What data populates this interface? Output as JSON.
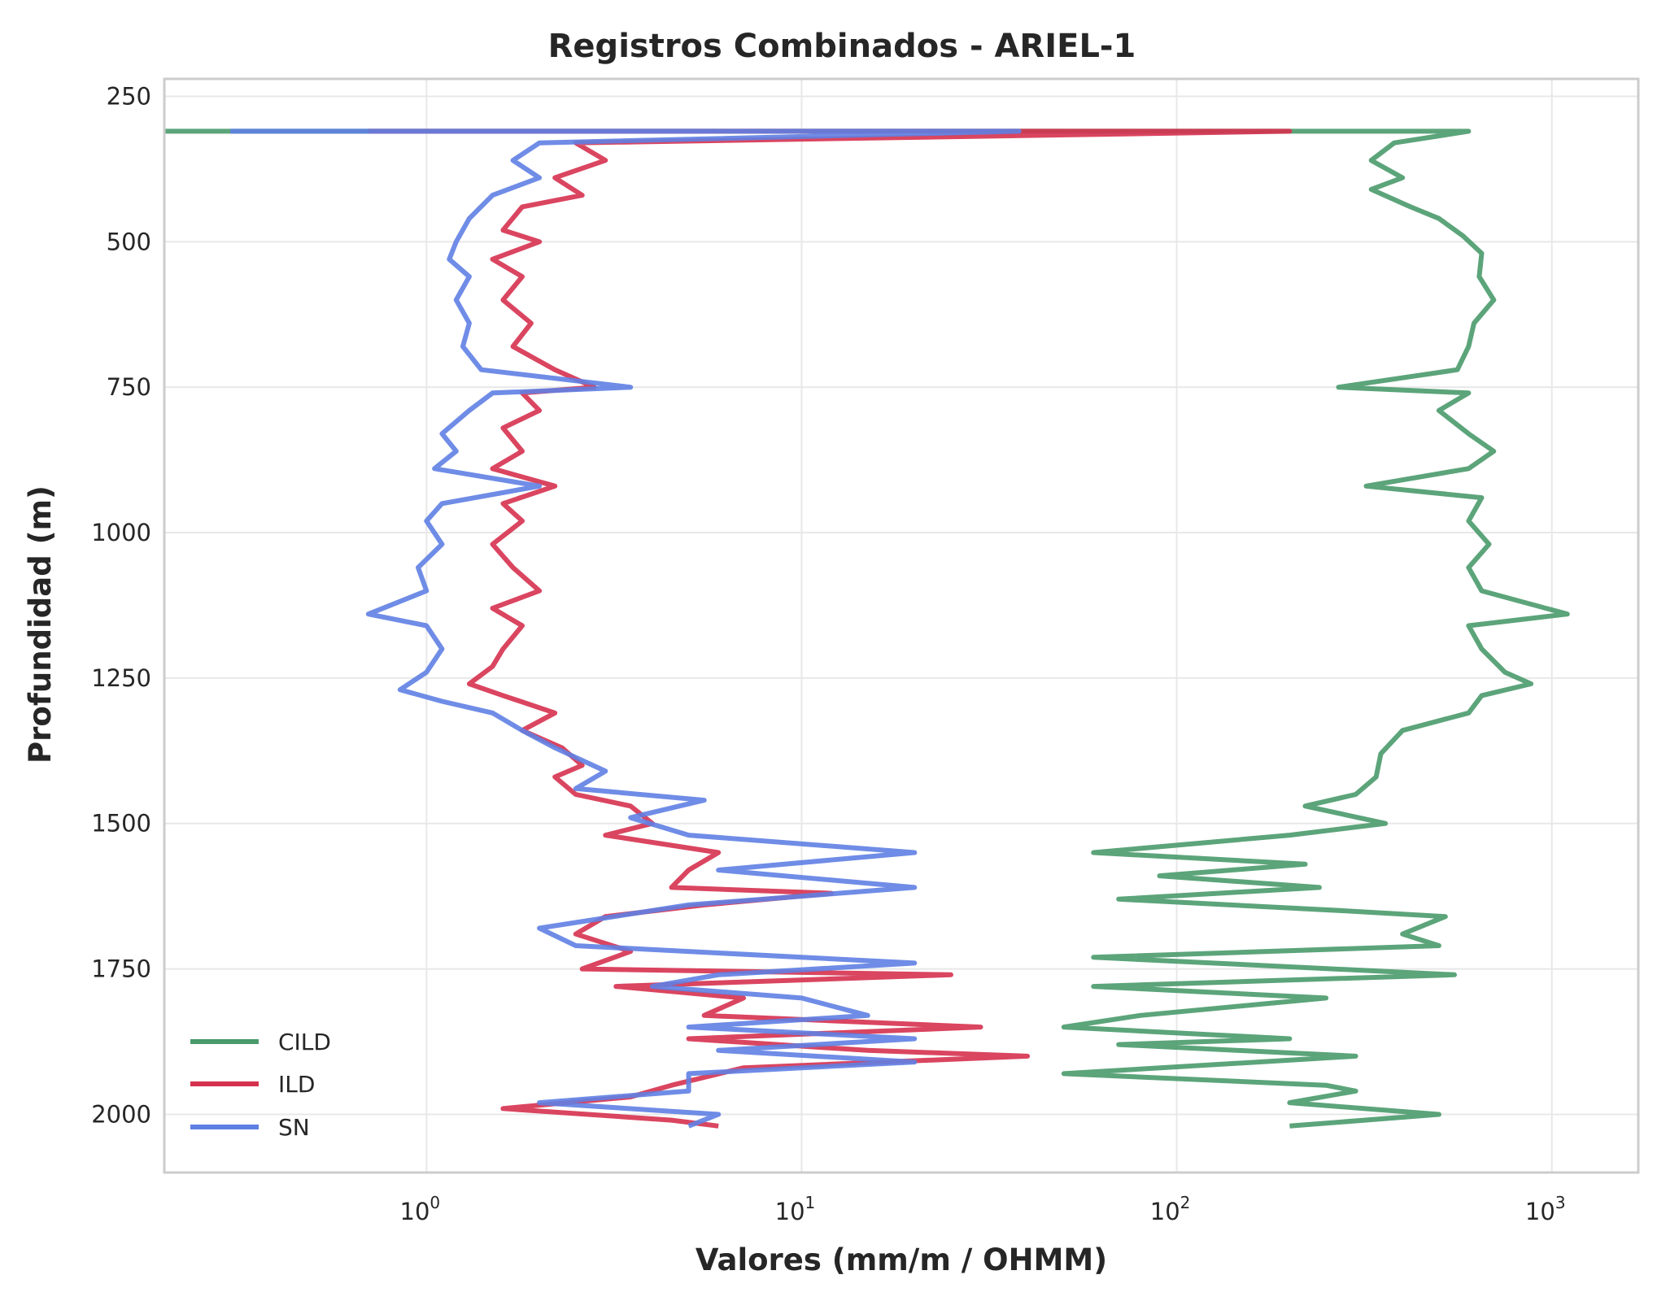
{
  "chart_data": {
    "type": "line",
    "title": "Registros Combinados - ARIEL-1",
    "xlabel": "Valores (mm/m / OHMM)",
    "ylabel": "Profundidad (m)",
    "x_scale": "log",
    "xlim": [
      0.2,
      1700
    ],
    "ylim": [
      2100,
      220
    ],
    "y_inverted": true,
    "grid": true,
    "legend_position": "lower-left",
    "x_ticks": [
      {
        "value": 1,
        "base": "10",
        "exp": "0"
      },
      {
        "value": 10,
        "base": "10",
        "exp": "1"
      },
      {
        "value": 100,
        "base": "10",
        "exp": "2"
      },
      {
        "value": 1000,
        "base": "10",
        "exp": "3"
      }
    ],
    "y_ticks": [
      250,
      500,
      750,
      1000,
      1250,
      1500,
      1750,
      2000
    ],
    "series": [
      {
        "name": "CILD",
        "color": "#4a9a6c",
        "points": [
          [
            0.2,
            310
          ],
          [
            600,
            310
          ],
          [
            380,
            330
          ],
          [
            330,
            360
          ],
          [
            400,
            390
          ],
          [
            330,
            410
          ],
          [
            420,
            440
          ],
          [
            500,
            460
          ],
          [
            580,
            490
          ],
          [
            650,
            520
          ],
          [
            640,
            560
          ],
          [
            700,
            600
          ],
          [
            620,
            640
          ],
          [
            600,
            680
          ],
          [
            560,
            720
          ],
          [
            270,
            750
          ],
          [
            600,
            760
          ],
          [
            500,
            790
          ],
          [
            600,
            830
          ],
          [
            700,
            860
          ],
          [
            600,
            890
          ],
          [
            320,
            920
          ],
          [
            650,
            940
          ],
          [
            600,
            980
          ],
          [
            680,
            1020
          ],
          [
            600,
            1060
          ],
          [
            650,
            1100
          ],
          [
            1100,
            1140
          ],
          [
            600,
            1160
          ],
          [
            650,
            1200
          ],
          [
            750,
            1240
          ],
          [
            880,
            1260
          ],
          [
            650,
            1280
          ],
          [
            600,
            1310
          ],
          [
            400,
            1340
          ],
          [
            350,
            1380
          ],
          [
            340,
            1420
          ],
          [
            300,
            1450
          ],
          [
            220,
            1470
          ],
          [
            360,
            1500
          ],
          [
            200,
            1520
          ],
          [
            60,
            1550
          ],
          [
            220,
            1570
          ],
          [
            90,
            1590
          ],
          [
            240,
            1610
          ],
          [
            70,
            1630
          ],
          [
            280,
            1650
          ],
          [
            520,
            1660
          ],
          [
            400,
            1690
          ],
          [
            500,
            1710
          ],
          [
            60,
            1730
          ],
          [
            550,
            1760
          ],
          [
            60,
            1780
          ],
          [
            250,
            1800
          ],
          [
            80,
            1830
          ],
          [
            50,
            1850
          ],
          [
            200,
            1870
          ],
          [
            70,
            1880
          ],
          [
            300,
            1900
          ],
          [
            50,
            1930
          ],
          [
            250,
            1950
          ],
          [
            300,
            1960
          ],
          [
            200,
            1980
          ],
          [
            500,
            2000
          ],
          [
            200,
            2020
          ]
        ]
      },
      {
        "name": "ILD",
        "color": "#d6314f",
        "points": [
          [
            0.7,
            310
          ],
          [
            200,
            310
          ],
          [
            2.5,
            330
          ],
          [
            3.0,
            360
          ],
          [
            2.2,
            390
          ],
          [
            2.6,
            420
          ],
          [
            1.8,
            440
          ],
          [
            1.6,
            480
          ],
          [
            2.0,
            500
          ],
          [
            1.5,
            530
          ],
          [
            1.8,
            560
          ],
          [
            1.6,
            600
          ],
          [
            1.9,
            640
          ],
          [
            1.7,
            680
          ],
          [
            2.2,
            720
          ],
          [
            2.8,
            750
          ],
          [
            1.8,
            760
          ],
          [
            2.0,
            790
          ],
          [
            1.6,
            820
          ],
          [
            1.8,
            860
          ],
          [
            1.5,
            890
          ],
          [
            2.2,
            920
          ],
          [
            1.6,
            950
          ],
          [
            1.8,
            980
          ],
          [
            1.5,
            1020
          ],
          [
            1.7,
            1060
          ],
          [
            2.0,
            1100
          ],
          [
            1.5,
            1130
          ],
          [
            1.8,
            1160
          ],
          [
            1.6,
            1200
          ],
          [
            1.5,
            1230
          ],
          [
            1.3,
            1260
          ],
          [
            1.6,
            1280
          ],
          [
            2.2,
            1310
          ],
          [
            1.8,
            1340
          ],
          [
            2.3,
            1370
          ],
          [
            2.6,
            1400
          ],
          [
            2.2,
            1420
          ],
          [
            2.5,
            1450
          ],
          [
            3.5,
            1470
          ],
          [
            4.0,
            1500
          ],
          [
            3.0,
            1520
          ],
          [
            6.0,
            1550
          ],
          [
            5.0,
            1580
          ],
          [
            4.5,
            1610
          ],
          [
            12.0,
            1620
          ],
          [
            5.5,
            1640
          ],
          [
            3.0,
            1660
          ],
          [
            2.5,
            1690
          ],
          [
            3.5,
            1720
          ],
          [
            2.6,
            1750
          ],
          [
            25.0,
            1760
          ],
          [
            3.2,
            1780
          ],
          [
            7.0,
            1800
          ],
          [
            5.5,
            1830
          ],
          [
            30.0,
            1850
          ],
          [
            5.0,
            1870
          ],
          [
            15.0,
            1890
          ],
          [
            40.0,
            1900
          ],
          [
            7.0,
            1920
          ],
          [
            4.5,
            1950
          ],
          [
            3.5,
            1970
          ],
          [
            1.6,
            1990
          ],
          [
            4.5,
            2010
          ],
          [
            6.0,
            2020
          ]
        ]
      },
      {
        "name": "SN",
        "color": "#5f80e3",
        "points": [
          [
            0.3,
            310
          ],
          [
            38,
            310
          ],
          [
            2.0,
            330
          ],
          [
            1.7,
            360
          ],
          [
            2.0,
            390
          ],
          [
            1.5,
            420
          ],
          [
            1.3,
            460
          ],
          [
            1.2,
            500
          ],
          [
            1.15,
            530
          ],
          [
            1.3,
            560
          ],
          [
            1.2,
            600
          ],
          [
            1.3,
            640
          ],
          [
            1.25,
            680
          ],
          [
            1.4,
            720
          ],
          [
            3.5,
            750
          ],
          [
            1.5,
            760
          ],
          [
            1.3,
            790
          ],
          [
            1.1,
            830
          ],
          [
            1.2,
            860
          ],
          [
            1.05,
            890
          ],
          [
            2.0,
            920
          ],
          [
            1.1,
            950
          ],
          [
            1.0,
            980
          ],
          [
            1.1,
            1020
          ],
          [
            0.95,
            1060
          ],
          [
            1.0,
            1100
          ],
          [
            0.7,
            1140
          ],
          [
            1.0,
            1160
          ],
          [
            1.1,
            1200
          ],
          [
            1.0,
            1240
          ],
          [
            0.85,
            1270
          ],
          [
            1.1,
            1290
          ],
          [
            1.5,
            1310
          ],
          [
            1.8,
            1340
          ],
          [
            2.2,
            1370
          ],
          [
            3.0,
            1410
          ],
          [
            2.5,
            1440
          ],
          [
            5.5,
            1460
          ],
          [
            3.5,
            1490
          ],
          [
            5.0,
            1520
          ],
          [
            20.0,
            1550
          ],
          [
            6.0,
            1580
          ],
          [
            20.0,
            1610
          ],
          [
            5.0,
            1640
          ],
          [
            2.0,
            1680
          ],
          [
            2.5,
            1710
          ],
          [
            20.0,
            1740
          ],
          [
            6.0,
            1760
          ],
          [
            4.0,
            1780
          ],
          [
            10.0,
            1800
          ],
          [
            15.0,
            1830
          ],
          [
            5.0,
            1850
          ],
          [
            20.0,
            1870
          ],
          [
            6.0,
            1890
          ],
          [
            20.0,
            1910
          ],
          [
            5.0,
            1930
          ],
          [
            5.0,
            1960
          ],
          [
            2.0,
            1980
          ],
          [
            6.0,
            2000
          ],
          [
            5.0,
            2020
          ]
        ]
      }
    ]
  }
}
